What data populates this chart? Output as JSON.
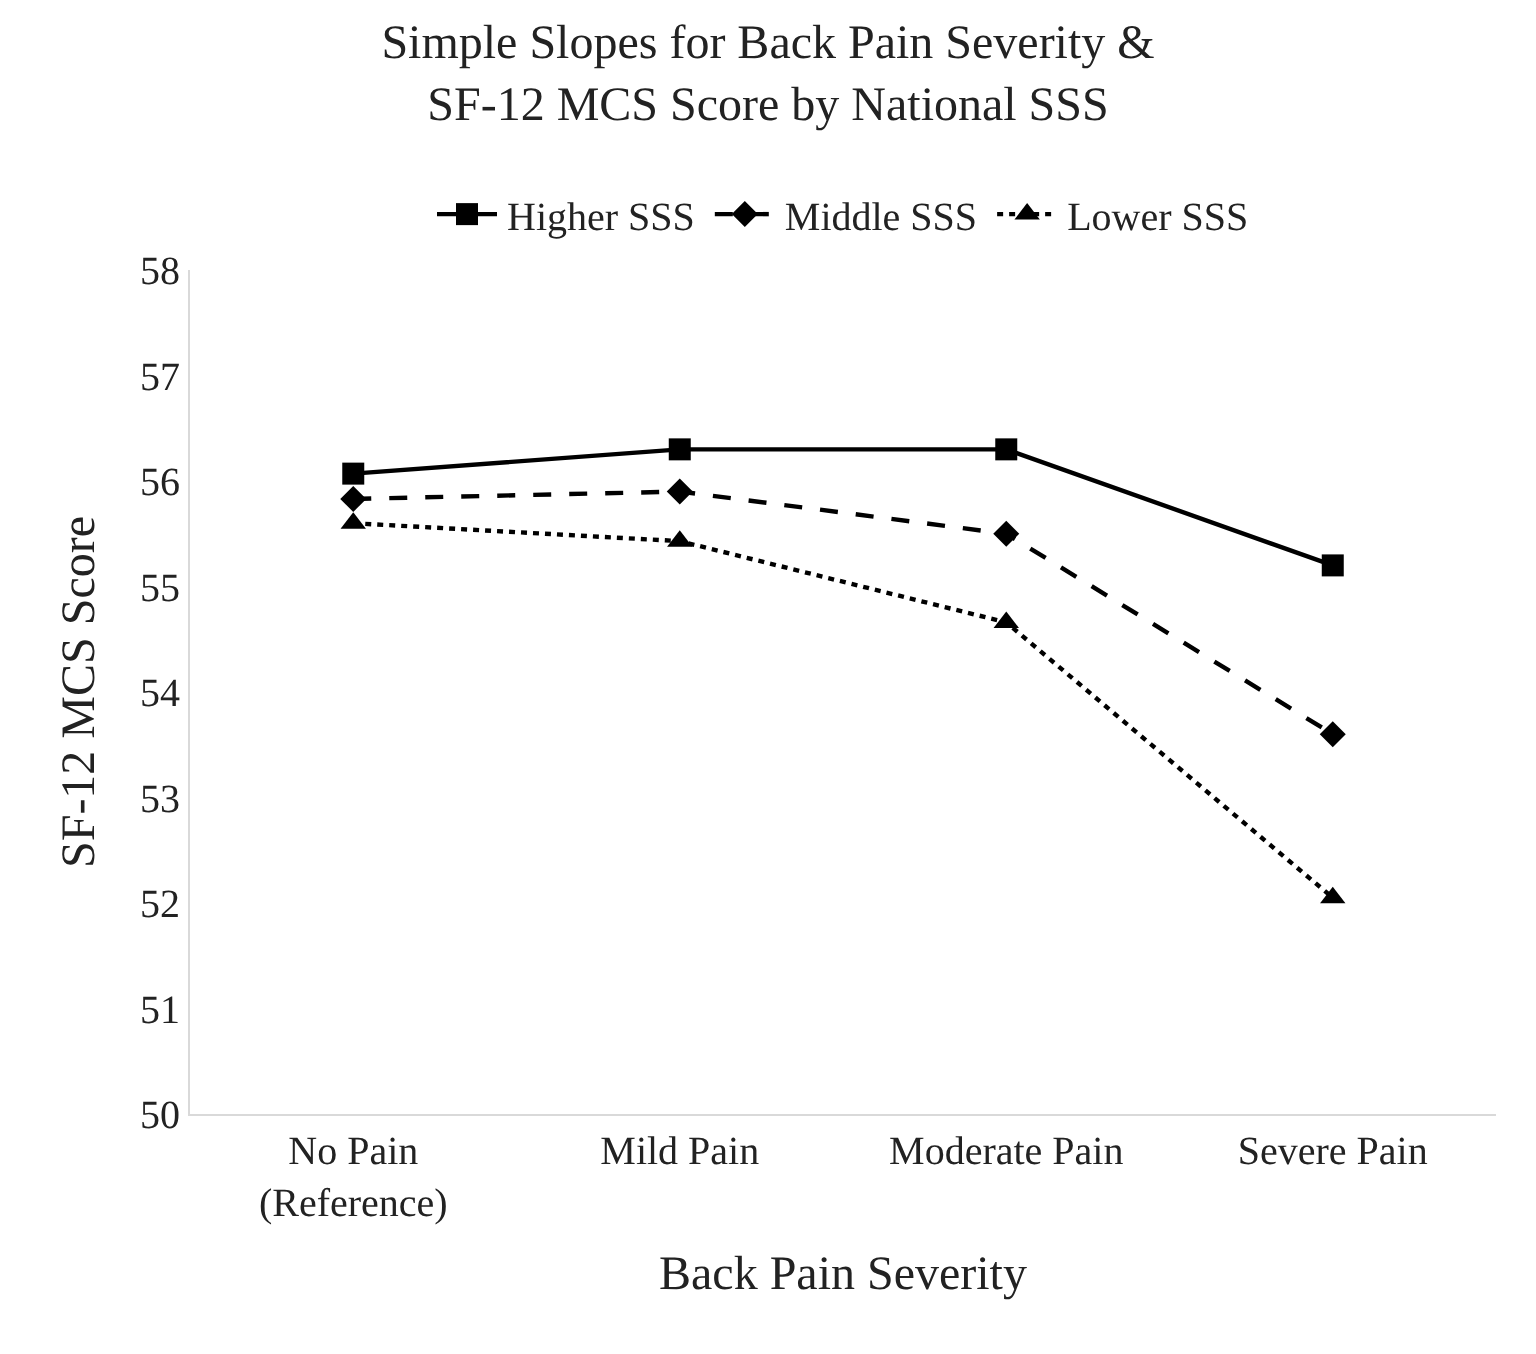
{
  "chart_data": {
    "type": "line",
    "title": "Simple Slopes for Back Pain Severity &\nSF-12 MCS Score by National SSS",
    "xlabel": "Back Pain Severity",
    "ylabel": "SF-12 MCS Score",
    "categories": [
      "No Pain\n(Reference)",
      "Mild Pain",
      "Moderate Pain",
      "Severe Pain"
    ],
    "series": [
      {
        "name": "Higher SSS",
        "color": "#000000",
        "marker": "square",
        "line_style": "solid",
        "values": [
          56.07,
          56.3,
          56.3,
          55.2
        ]
      },
      {
        "name": "Middle SSS",
        "color": "#000000",
        "marker": "diamond",
        "line_style": "dashed",
        "values": [
          55.83,
          55.9,
          55.5,
          53.6
        ]
      },
      {
        "name": "Lower SSS",
        "color": "#000000",
        "marker": "triangle",
        "line_style": "dotted",
        "values": [
          55.6,
          55.43,
          54.66,
          52.05
        ]
      }
    ],
    "ylim": [
      50,
      58
    ],
    "yticks": [
      50,
      51,
      52,
      53,
      54,
      55,
      56,
      57,
      58
    ],
    "legend": "top"
  }
}
